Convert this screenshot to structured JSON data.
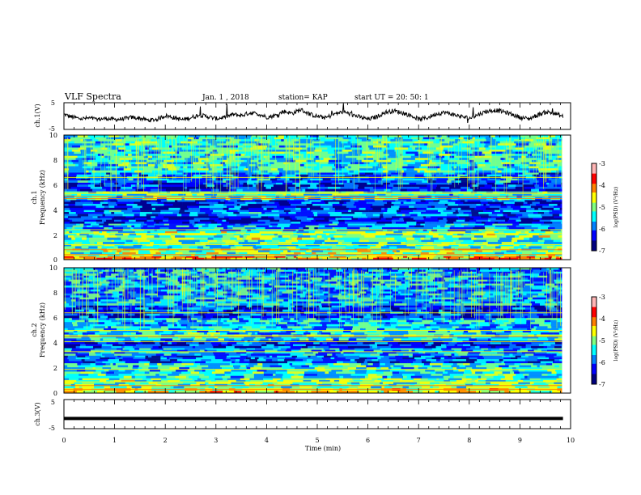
{
  "header": {
    "title": "VLF Spectra",
    "date": "Jan. 1 , 2018",
    "station": "station= KAP",
    "start": "start UT =  20: 50: 1"
  },
  "chart_data": [
    {
      "type": "line",
      "panel": "ch1-waveform",
      "ylabel": "ch.1(V)",
      "yticks": [
        "5",
        "-5"
      ],
      "ylim": [
        -5,
        5
      ],
      "xlim": [
        0,
        10
      ],
      "x_end": 9.85,
      "series": [
        {
          "values": [
            0.6,
            -0.4,
            -1.0,
            -0.8,
            -1.2,
            -0.9,
            -1.3,
            -1.1,
            -0.5,
            -0.8,
            -1.6,
            -1.2,
            0.2,
            -0.6,
            -1.4,
            -0.6,
            0.4,
            -0.2,
            -1.0,
            -0.4,
            0.6,
            0.2,
            1.2,
            0.8,
            -0.4,
            0.2,
            1.8,
            1.0,
            2.4,
            0.8,
            -0.2,
            -0.6,
            0.8,
            1.6,
            0.6,
            -0.4,
            -1.2,
            -0.2,
            1.4,
            2.0,
            1.2,
            0.2,
            -1.2,
            -0.6,
            0.8,
            1.4,
            0.6,
            -0.2,
            -0.8,
            0.6,
            1.8,
            2.2,
            1.6,
            0.6,
            -0.6,
            -1.0,
            0.4,
            1.6,
            1.0,
            -0.2
          ]
        }
      ]
    },
    {
      "type": "heatmap",
      "panel": "ch1-spectrogram",
      "ylabel_top": "ch.1",
      "ylabel": "Frequency (kHz)",
      "yticks": [
        "0",
        "2",
        "4",
        "6",
        "8",
        "10"
      ],
      "ylim": [
        0,
        10
      ],
      "xlim": [
        0,
        10
      ],
      "colorbar": {
        "label": "log(PSD) (V²/Hz)",
        "ticks": [
          "-3",
          "-4",
          "-5",
          "-6",
          "-7"
        ],
        "range": [
          -7,
          -3
        ]
      },
      "bands_khz": [
        {
          "from": 0.0,
          "to": 0.3,
          "level": -4.3
        },
        {
          "from": 0.3,
          "to": 0.9,
          "level": -5.0
        },
        {
          "from": 0.9,
          "to": 1.6,
          "level": -5.3
        },
        {
          "from": 1.6,
          "to": 2.3,
          "level": -5.1
        },
        {
          "from": 2.3,
          "to": 2.9,
          "level": -5.8
        },
        {
          "from": 2.9,
          "to": 3.5,
          "level": -6.3
        },
        {
          "from": 3.5,
          "to": 4.0,
          "level": -6.0
        },
        {
          "from": 4.0,
          "to": 4.8,
          "level": -6.2
        },
        {
          "from": 4.8,
          "to": 5.5,
          "level": -5.4
        },
        {
          "from": 5.5,
          "to": 6.2,
          "level": -6.3
        },
        {
          "from": 6.2,
          "to": 7.0,
          "level": -5.9
        },
        {
          "from": 7.0,
          "to": 10.0,
          "level": -5.4
        }
      ],
      "lines_khz": [
        0.4,
        0.8,
        1.2,
        2.1,
        2.4,
        4.9,
        5.1,
        5.3,
        5.4,
        6.6
      ]
    },
    {
      "type": "heatmap",
      "panel": "ch2-spectrogram",
      "ylabel_top": "ch.2",
      "ylabel": "Frequency (kHz)",
      "yticks": [
        "0",
        "2",
        "4",
        "6",
        "8",
        "10"
      ],
      "ylim": [
        0,
        10
      ],
      "xlim": [
        0,
        10
      ],
      "colorbar": {
        "label": "log(PSD) (V²/Hz)",
        "ticks": [
          "-3",
          "-4",
          "-5",
          "-6",
          "-7"
        ],
        "range": [
          -7,
          -3
        ]
      },
      "bands_khz": [
        {
          "from": 0.0,
          "to": 0.4,
          "level": -4.6
        },
        {
          "from": 0.4,
          "to": 1.2,
          "level": -5.1
        },
        {
          "from": 1.2,
          "to": 2.4,
          "level": -5.4
        },
        {
          "from": 2.4,
          "to": 3.0,
          "level": -6.1
        },
        {
          "from": 3.0,
          "to": 3.6,
          "level": -5.7
        },
        {
          "from": 3.6,
          "to": 4.2,
          "level": -6.2
        },
        {
          "from": 4.2,
          "to": 5.0,
          "level": -5.5
        },
        {
          "from": 5.0,
          "to": 6.0,
          "level": -5.6
        },
        {
          "from": 6.0,
          "to": 7.0,
          "level": -6.2
        },
        {
          "from": 7.0,
          "to": 10.0,
          "level": -5.7
        }
      ],
      "lines_khz": [
        0.3,
        0.6,
        0.9,
        1.9,
        3.3,
        4.1,
        4.5,
        4.6,
        5.0,
        6.4
      ]
    },
    {
      "type": "line",
      "panel": "ch3-waveform",
      "ylabel": "ch.3(V)",
      "yticks": [
        "5",
        "-5"
      ],
      "ylim": [
        -5,
        5
      ],
      "xlim": [
        0,
        10
      ],
      "x_end": 9.85,
      "series": [
        {
          "values": [
            -1.5,
            -1.5
          ]
        }
      ]
    }
  ],
  "xaxis": {
    "label": "Time (min)",
    "ticks": [
      "0",
      "1",
      "2",
      "3",
      "4",
      "5",
      "6",
      "7",
      "8",
      "9",
      "10"
    ]
  },
  "colors": {
    "colormap": [
      "#00007f",
      "#0000ff",
      "#0080ff",
      "#00ffff",
      "#80ff80",
      "#ffff00",
      "#ff8000",
      "#ff0000",
      "#ffb4b4"
    ]
  }
}
